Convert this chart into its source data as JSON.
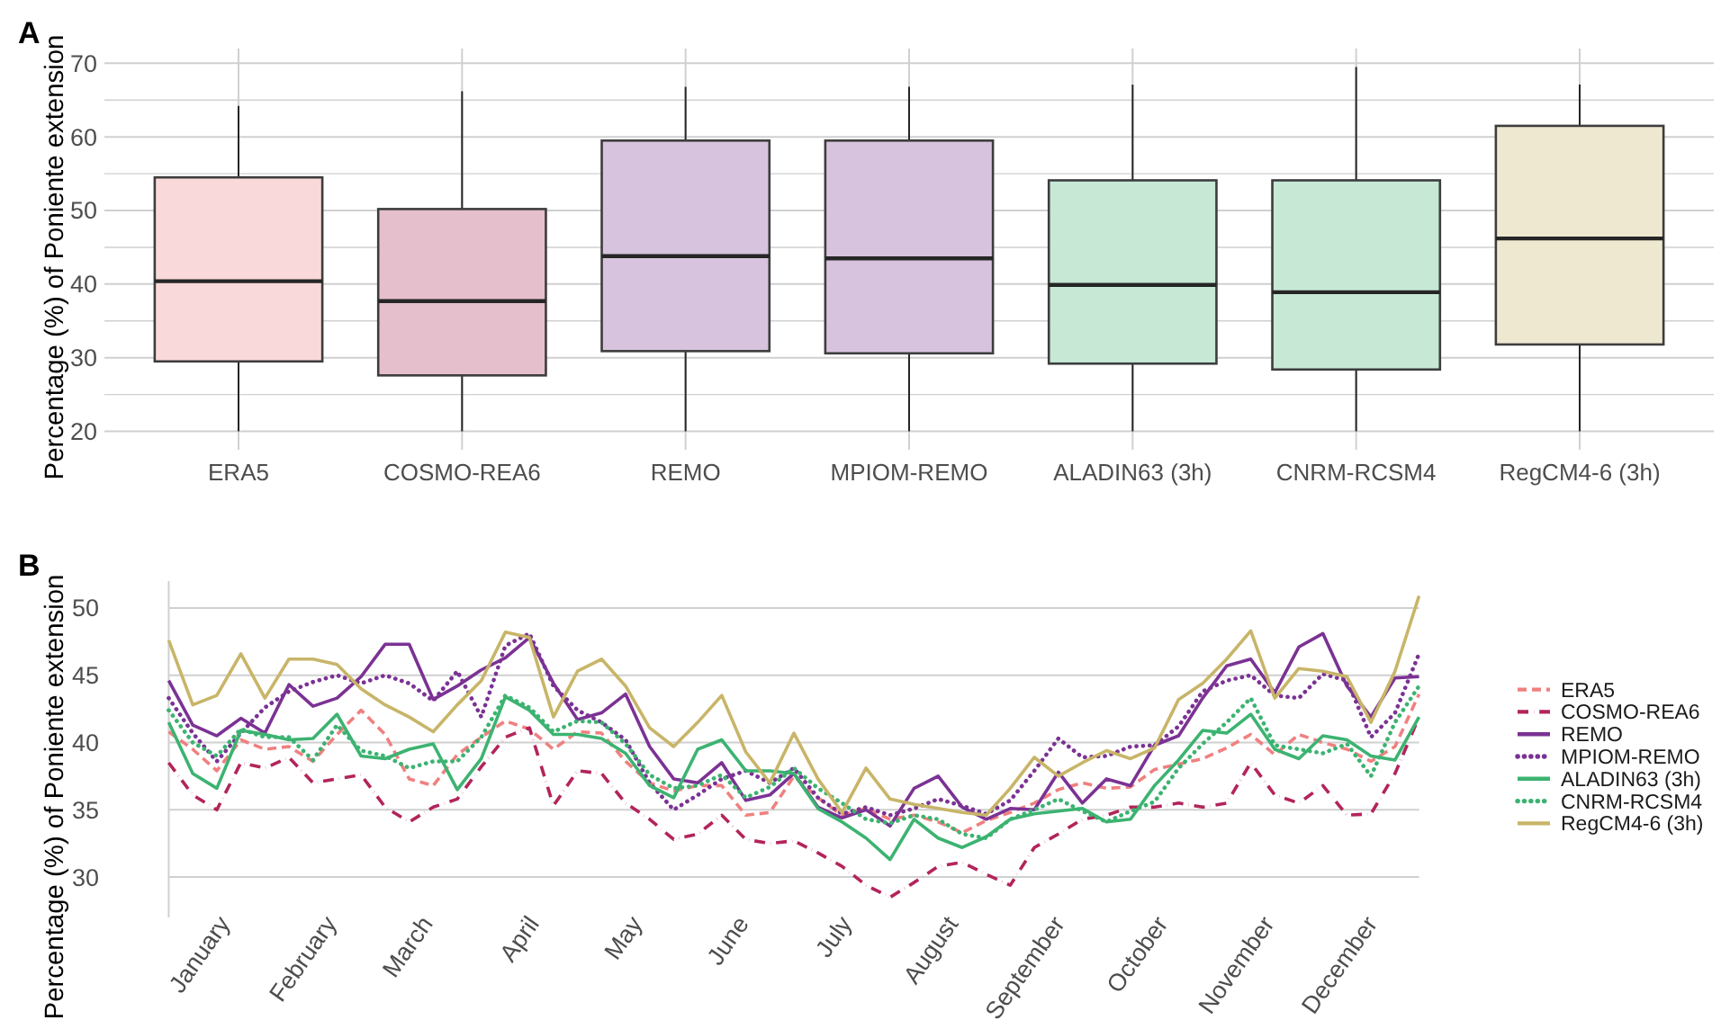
{
  "chart_data": [
    {
      "type": "box",
      "title": "A",
      "ylabel": "Percentage (%) of Poniente extension",
      "categories": [
        "ERA5",
        "COSMO-REA6",
        "REMO",
        "MPIOM-REMO",
        "ALADIN63 (3h)",
        "CNRM-RCSM4",
        "RegCM4-6 (3h)"
      ],
      "boxes": [
        {
          "low": 20,
          "q1": 29.5,
          "median": 40.4,
          "q3": 54.5,
          "high": 64.2
        },
        {
          "low": 20,
          "q1": 27.6,
          "median": 37.7,
          "q3": 50.2,
          "high": 66.2
        },
        {
          "low": 20,
          "q1": 30.9,
          "median": 43.8,
          "q3": 59.5,
          "high": 66.8
        },
        {
          "low": 20,
          "q1": 30.6,
          "median": 43.5,
          "q3": 59.5,
          "high": 66.8
        },
        {
          "low": 20,
          "q1": 29.2,
          "median": 39.9,
          "q3": 54.1,
          "high": 67.1
        },
        {
          "low": 20,
          "q1": 28.4,
          "median": 38.9,
          "q3": 54.1,
          "high": 69.5
        },
        {
          "low": 20,
          "q1": 31.8,
          "median": 46.2,
          "q3": 61.5,
          "high": 67.1
        }
      ],
      "colors": [
        "#f9d9d9",
        "#e6bfcc",
        "#d8c3de",
        "#d8c3de",
        "#c6e8d5",
        "#c6e8d5",
        "#efe8d1"
      ],
      "ylim": [
        17.5,
        72
      ],
      "yticks": [
        20,
        {
          "value": 25,
          "label": null
        },
        30,
        {
          "value": 35,
          "label": null
        },
        40,
        {
          "value": 45,
          "label": null
        },
        50,
        {
          "value": 55,
          "label": null
        },
        60,
        {
          "value": 65,
          "label": null
        },
        70
      ],
      "grid": true
    },
    {
      "type": "line",
      "title": "B",
      "ylabel": "Percentage (%) of Poniente extension",
      "x": [
        "--01-01",
        "--01-08",
        "--01-15",
        "--01-22",
        "--01-29",
        "--02-05",
        "--02-12",
        "--02-19",
        "--02-26",
        "--03-05",
        "--03-12",
        "--03-19",
        "--03-26",
        "--04-02",
        "--04-09",
        "--04-16",
        "--04-23",
        "--04-30",
        "--05-07",
        "--05-14",
        "--05-21",
        "--05-28",
        "--06-04",
        "--06-11",
        "--06-18",
        "--06-25",
        "--07-02",
        "--07-09",
        "--07-16",
        "--07-23",
        "--07-30",
        "--08-06",
        "--08-13",
        "--08-20",
        "--08-27",
        "--09-03",
        "--09-10",
        "--09-17",
        "--09-24",
        "--10-01",
        "--10-08",
        "--10-15",
        "--10-22",
        "--10-29",
        "--11-05",
        "--11-12",
        "--11-19",
        "--11-26",
        "--12-03",
        "--12-10",
        "--12-17",
        "--12-24",
        "--12-31"
      ],
      "xlim": [
        "--01-01",
        "--12-31"
      ],
      "xticks": [
        {
          "value": "--01-15",
          "label": "January"
        },
        {
          "value": "--02-15",
          "label": "February"
        },
        {
          "value": "--03-15",
          "label": "March"
        },
        {
          "value": "--04-15",
          "label": "April"
        },
        {
          "value": "--05-15",
          "label": "May"
        },
        {
          "value": "--06-15",
          "label": "June"
        },
        {
          "value": "--07-15",
          "label": "July"
        },
        {
          "value": "--08-15",
          "label": "August"
        },
        {
          "value": "--09-15",
          "label": "September"
        },
        {
          "value": "--10-15",
          "label": "October"
        },
        {
          "value": "--11-15",
          "label": "November"
        },
        {
          "value": "--12-15",
          "label": "December"
        }
      ],
      "ylim": [
        27,
        52
      ],
      "yticks": [
        30,
        35,
        40,
        45,
        50
      ],
      "grid": "y",
      "legend": "right",
      "series": [
        {
          "name": "ERA5",
          "color": "#f08080",
          "line_style": "dashed",
          "values": [
            40.8,
            39.5,
            37.9,
            40.2,
            39.5,
            39.7,
            38.6,
            40.6,
            42.4,
            40.6,
            37.3,
            36.8,
            39.1,
            40.4,
            41.6,
            41.0,
            39.5,
            40.8,
            40.7,
            38.6,
            37.0,
            36.4,
            36.8,
            36.8,
            34.6,
            34.8,
            37.5,
            35.9,
            34.6,
            35.1,
            34.3,
            34.6,
            34.1,
            33.3,
            34.2,
            34.8,
            35.5,
            36.5,
            37.0,
            36.6,
            36.7,
            38.0,
            38.4,
            38.8,
            39.6,
            40.6,
            39.1,
            40.6,
            40.0,
            39.5,
            38.6,
            39.7,
            43.6
          ]
        },
        {
          "name": "COSMO-REA6",
          "color": "#b3245b",
          "line_style": "dashdot",
          "values": [
            38.5,
            36.1,
            35.0,
            38.5,
            38.1,
            38.9,
            37.0,
            37.3,
            37.6,
            35.2,
            34.1,
            35.2,
            35.8,
            38.2,
            40.4,
            41.1,
            35.3,
            37.9,
            37.7,
            35.5,
            34.3,
            32.8,
            33.2,
            34.6,
            32.8,
            32.5,
            32.7,
            31.8,
            30.8,
            29.4,
            28.5,
            29.6,
            30.8,
            31.1,
            30.2,
            29.4,
            32.2,
            33.2,
            34.3,
            34.6,
            35.2,
            35.2,
            35.5,
            35.2,
            35.5,
            38.5,
            36.1,
            35.5,
            36.8,
            34.6,
            34.7,
            37.7,
            41.9
          ]
        },
        {
          "name": "REMO",
          "color": "#7b3294",
          "line_style": "solid",
          "values": [
            44.6,
            41.3,
            40.5,
            41.8,
            40.7,
            44.3,
            42.7,
            43.3,
            44.9,
            47.3,
            47.3,
            43.2,
            44.2,
            45.4,
            46.3,
            47.8,
            44.4,
            41.7,
            42.2,
            43.6,
            39.7,
            37.3,
            37.0,
            38.5,
            35.7,
            36.1,
            37.7,
            35.2,
            34.4,
            35.0,
            33.8,
            36.6,
            37.5,
            35.2,
            34.3,
            35.1,
            35.0,
            37.8,
            35.5,
            37.3,
            36.8,
            39.8,
            40.5,
            43.3,
            45.7,
            46.2,
            43.7,
            47.1,
            48.1,
            44.2,
            41.9,
            44.8,
            44.9
          ]
        },
        {
          "name": "MPIOM-REMO",
          "color": "#7b3294",
          "line_style": "dotted",
          "values": [
            43.3,
            40.7,
            38.6,
            40.7,
            42.6,
            43.8,
            44.5,
            45.0,
            44.4,
            45.0,
            44.4,
            43.1,
            45.3,
            41.9,
            47.2,
            48.1,
            44.2,
            42.4,
            41.5,
            40.2,
            37.0,
            35.0,
            36.1,
            37.3,
            37.9,
            37.0,
            38.1,
            35.9,
            34.7,
            35.2,
            34.6,
            35.1,
            35.8,
            35.3,
            34.7,
            35.7,
            37.9,
            40.3,
            38.9,
            39.0,
            39.7,
            39.8,
            41.2,
            43.8,
            44.6,
            45.0,
            43.5,
            43.3,
            45.1,
            44.6,
            40.4,
            42.2,
            46.6
          ]
        },
        {
          "name": "ALADIN63 (3h)",
          "color": "#3cb371",
          "line_style": "solid",
          "values": [
            41.5,
            37.7,
            36.6,
            40.9,
            40.6,
            40.2,
            40.3,
            42.1,
            39.0,
            38.8,
            39.5,
            39.9,
            36.5,
            38.8,
            43.4,
            42.4,
            40.6,
            40.6,
            40.3,
            39.2,
            36.8,
            35.9,
            39.5,
            40.2,
            37.9,
            37.9,
            37.7,
            35.1,
            34.1,
            32.9,
            31.3,
            34.3,
            32.9,
            32.2,
            33.0,
            34.3,
            34.7,
            34.9,
            35.1,
            34.1,
            34.3,
            36.8,
            38.7,
            40.9,
            40.7,
            42.1,
            39.5,
            38.8,
            40.5,
            40.2,
            39.0,
            38.7,
            41.9
          ]
        },
        {
          "name": "CNRM-RCSM4",
          "color": "#3cb371",
          "line_style": "dotted",
          "values": [
            42.4,
            40.0,
            39.0,
            41.0,
            40.4,
            40.4,
            38.7,
            41.3,
            39.4,
            39.0,
            38.1,
            38.6,
            38.6,
            40.4,
            43.5,
            42.6,
            40.8,
            41.6,
            41.5,
            39.9,
            37.6,
            36.6,
            36.8,
            37.6,
            35.9,
            36.7,
            38.1,
            36.6,
            35.5,
            34.3,
            34.0,
            34.6,
            34.3,
            33.2,
            32.9,
            34.3,
            35.0,
            35.8,
            34.9,
            34.1,
            34.9,
            35.6,
            38.1,
            39.9,
            41.5,
            43.3,
            39.8,
            39.5,
            39.2,
            39.9,
            37.5,
            41.5,
            44.2
          ]
        },
        {
          "name": "RegCM4-6 (3h)",
          "color": "#c8b568",
          "line_style": "solid",
          "values": [
            47.6,
            42.8,
            43.5,
            46.6,
            43.3,
            46.2,
            46.2,
            45.8,
            44.0,
            42.8,
            41.9,
            40.8,
            42.8,
            44.6,
            48.2,
            47.8,
            41.9,
            45.3,
            46.2,
            44.2,
            41.1,
            39.7,
            41.5,
            43.5,
            39.3,
            37.0,
            40.7,
            37.3,
            34.8,
            38.1,
            35.8,
            35.4,
            35.1,
            34.8,
            34.6,
            36.6,
            38.9,
            37.5,
            38.5,
            39.4,
            38.8,
            39.6,
            43.2,
            44.4,
            46.2,
            48.3,
            43.3,
            45.5,
            45.3,
            44.9,
            41.5,
            45.3,
            50.9
          ]
        }
      ]
    }
  ]
}
